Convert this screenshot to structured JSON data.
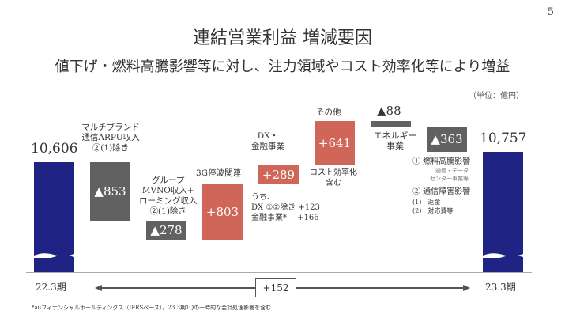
{
  "page_number": "5",
  "title": "連結営業利益 増減要因",
  "subtitle": "値下げ・燃料高騰影響等に対し、注力領域やコスト効率化等により増益",
  "unit": "（単位：億円）",
  "footnote": "*auフィナンシャルホールディングス（IFRSベース）。23.3期1Qの一時的な会計処理影響を含む",
  "colors": {
    "total": "#1f2383",
    "decrease": "#616161",
    "increase": "#cf6657"
  },
  "chart_data": {
    "type": "waterfall",
    "start": {
      "label": "22.3期",
      "value": 10606,
      "value_label": "10,606"
    },
    "end": {
      "label": "23.3期",
      "value": 10757,
      "value_label": "10,757"
    },
    "steps": [
      {
        "value": -853,
        "value_label": "▲853",
        "annotation": [
          "マルチブランド",
          "通信ARPU収入",
          "②(1)除き"
        ]
      },
      {
        "value": -278,
        "value_label": "▲278",
        "annotation": [
          "グループ",
          "MVNO収入+",
          "ローミング収入",
          "②(1)除き"
        ]
      },
      {
        "value": 803,
        "value_label": "+803",
        "annotation": [
          "3G停波関連"
        ]
      },
      {
        "value": 289,
        "value_label": "+289",
        "annotation": [
          "DX・",
          "金融事業"
        ],
        "sub_annotation": [
          "うち、",
          "DX ①②除き +123",
          "金融事業*　 +166"
        ]
      },
      {
        "value": 641,
        "value_label": "+641",
        "annotation": [
          "その他"
        ],
        "sub_annotation": [
          "コスト効率化",
          "含む"
        ]
      },
      {
        "value": -88,
        "value_label": "▲88",
        "annotation": [
          "エネルギー",
          "事業"
        ]
      },
      {
        "value": -363,
        "value_label": "▲363",
        "annotation_items": {
          "item1": "① 燃料高騰影響",
          "item1_sub": [
            "通信・データ",
            "センター事業等"
          ],
          "item2": "② 通信障害影響",
          "item2_sub1": "(1)　返金",
          "item2_sub2": "(2)　対応費等"
        }
      }
    ],
    "difference_label": "+152"
  }
}
